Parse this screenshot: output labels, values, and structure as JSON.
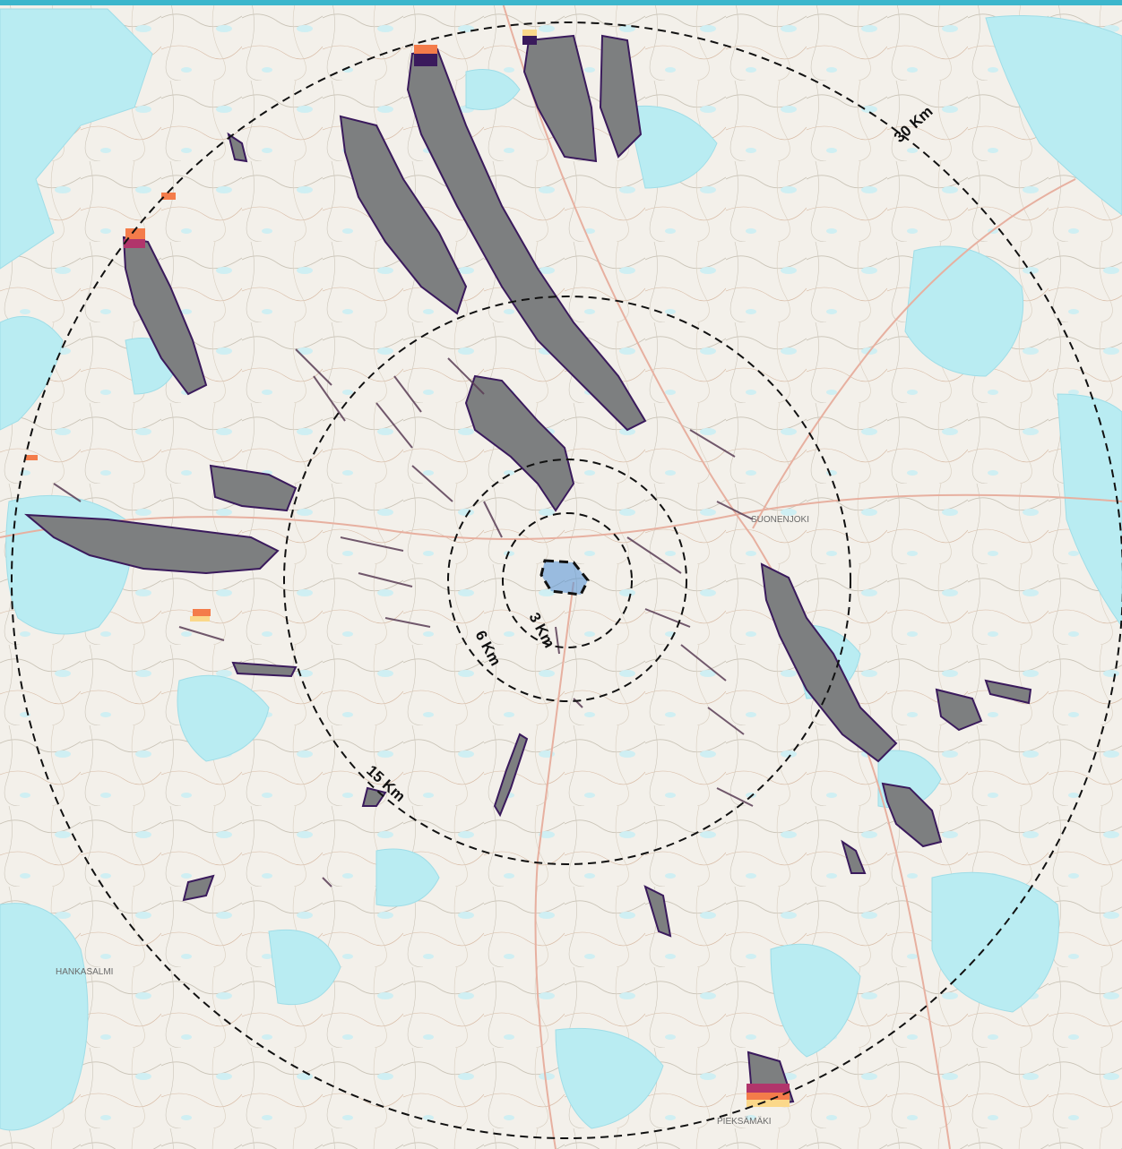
{
  "map": {
    "colors": {
      "frame_accent": "#3cb6cc",
      "land": "#f3f0ea",
      "water": "#b9ecf2",
      "shadow_gray": "#7d7f80",
      "flicker_dark": "#3a1a5c",
      "flicker_mid": "#b1356b",
      "flicker_warm": "#f47c4a",
      "flicker_light": "#fbd88a",
      "site_blue": "#4f8fd6",
      "ring_stroke": "#111111"
    },
    "rings": [
      {
        "label": "3 Km"
      },
      {
        "label": "6 Km"
      },
      {
        "label": "15 Km"
      },
      {
        "label": "30 Km"
      }
    ],
    "place_labels": {
      "suonenjoki": "SUONENJOKI",
      "pieksamaki": "PIEKSÄMÄKI",
      "hankasalmi": "HANKASALMI"
    },
    "site_marker": "project-area"
  }
}
